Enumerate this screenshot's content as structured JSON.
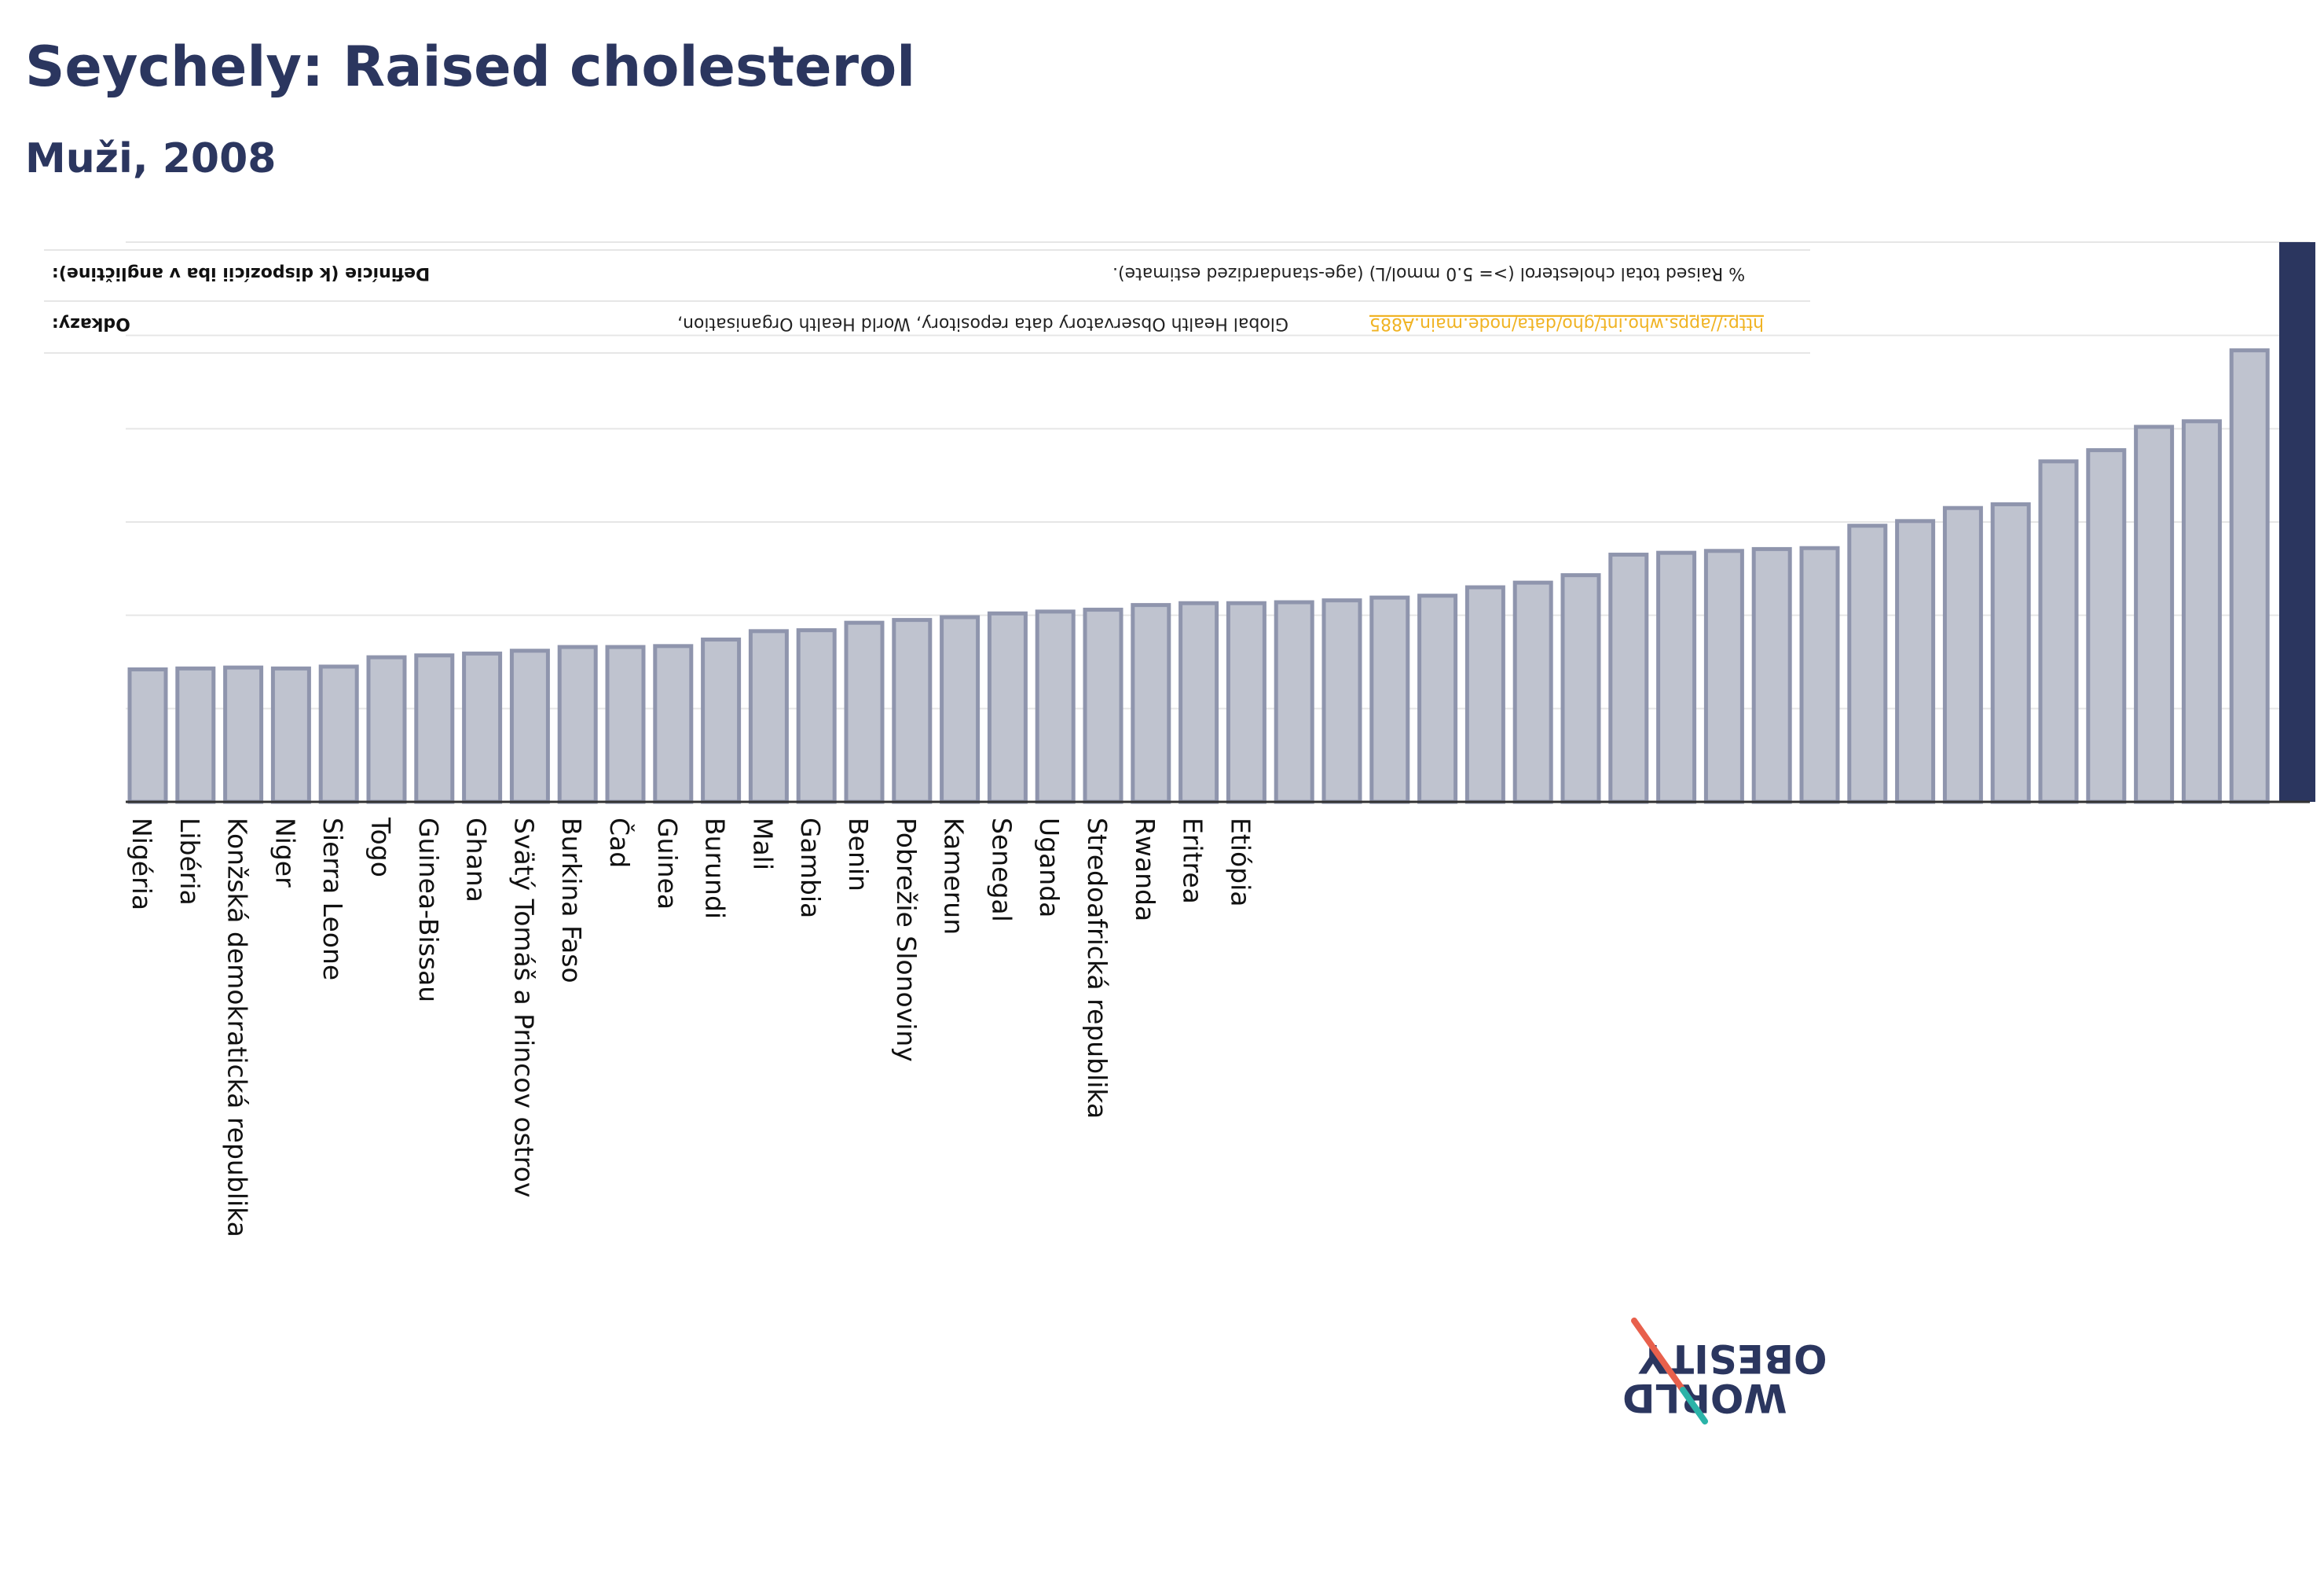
{
  "header": {
    "title": "Seychely: Raised cholesterol",
    "subtitle": "Muži, 2008"
  },
  "info": {
    "definition_label": "Definície (k dispozícii iba v angličtine):",
    "definition_value": "% Raised total cholesterol (>= 5.0 mmol/L) (age-standardized estimate).",
    "refs_label": "Odkazy:",
    "refs_value": "Global Health Observatory data repository, World Health Organisation,",
    "refs_link": "http://apps.who.int/gho/data/node.main.A885"
  },
  "logo": {
    "line1": "OBESITY",
    "line2": "WORLD"
  },
  "colors": {
    "bar": "#bfc3cf",
    "bar_stroke": "#8f95ad",
    "highlight": "#2b365f",
    "grid": "#e6e6e6",
    "axis": "#333333"
  },
  "chart_data": {
    "type": "bar",
    "title": "Seychely: Raised cholesterol",
    "subtitle": "Muži, 2008",
    "categories": [
      "Nigéria",
      "Libéria",
      "Konžská demokratická republika",
      "Niger",
      "Sierra Leone",
      "Togo",
      "Guinea-Bissau",
      "Ghana",
      "Svätý Tomáš a Princov ostrov",
      "Burkina Faso",
      "Čad",
      "Guinea",
      "Burundi",
      "Mali",
      "Gambia",
      "Benin",
      "Pobrežie Slonoviny",
      "Kamerun",
      "Senegal",
      "Uganda",
      "Stredoafrická republika",
      "Rwanda",
      "Eritrea",
      "Etiópia",
      "",
      "",
      "",
      "",
      "",
      "",
      "",
      "",
      "",
      "",
      "",
      "",
      "",
      "",
      "",
      "",
      "",
      "",
      "",
      "",
      "",
      ""
    ],
    "values": [
      14.2,
      14.3,
      14.4,
      14.3,
      14.5,
      15.5,
      15.7,
      15.9,
      16.2,
      16.6,
      16.6,
      16.7,
      17.4,
      18.3,
      18.4,
      19.2,
      19.5,
      19.8,
      20.2,
      20.4,
      20.6,
      21.1,
      21.3,
      21.3,
      21.4,
      21.6,
      21.9,
      22.1,
      23.0,
      23.5,
      24.3,
      26.5,
      26.7,
      26.9,
      27.1,
      27.2,
      29.6,
      30.1,
      31.5,
      31.9,
      36.5,
      37.7,
      40.2,
      40.8,
      48.4,
      60.0
    ],
    "highlight_index": 45,
    "ylim": [
      0,
      60
    ],
    "y_gridlines": [
      0,
      10,
      20,
      30,
      40,
      50,
      60
    ],
    "grid": true,
    "xlabel": "",
    "ylabel": ""
  }
}
